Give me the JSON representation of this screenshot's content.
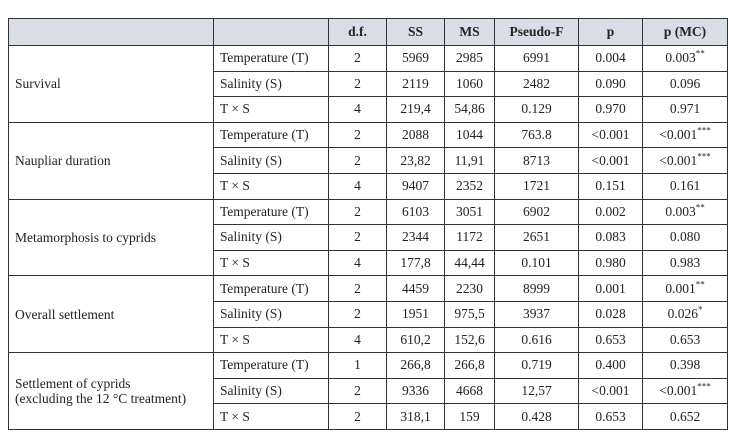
{
  "table": {
    "header": [
      "d.f.",
      "SS",
      "MS",
      "Pseudo-F",
      "p",
      "p (MC)"
    ],
    "groups": [
      {
        "label": [
          "Survival"
        ],
        "rows": [
          [
            "Temperature (T)",
            "2",
            "5969",
            "2985",
            "6991",
            "0.004",
            "0.003**"
          ],
          [
            "Salinity (S)",
            "2",
            "2119",
            "1060",
            "2482",
            "0.090",
            "0.096"
          ],
          [
            "T × S",
            "4",
            "219,4",
            "54,86",
            "0.129",
            "0.970",
            "0.971"
          ]
        ]
      },
      {
        "label": [
          "Naupliar duration"
        ],
        "rows": [
          [
            "Temperature (T)",
            "2",
            "2088",
            "1044",
            "763.8",
            "<0.001",
            "<0.001***"
          ],
          [
            "Salinity (S)",
            "2",
            "23,82",
            "11,91",
            "8713",
            "<0.001",
            "<0.001***"
          ],
          [
            "T × S",
            "4",
            "9407",
            "2352",
            "1721",
            "0.151",
            "0.161"
          ]
        ]
      },
      {
        "label": [
          "Metamorphosis to cyprids"
        ],
        "rows": [
          [
            "Temperature (T)",
            "2",
            "6103",
            "3051",
            "6902",
            "0.002",
            "0.003**"
          ],
          [
            "Salinity (S)",
            "2",
            "2344",
            "1172",
            "2651",
            "0.083",
            "0.080"
          ],
          [
            "T × S",
            "4",
            "177,8",
            "44,44",
            "0.101",
            "0.980",
            "0.983"
          ]
        ]
      },
      {
        "label": [
          "Overall settlement"
        ],
        "rows": [
          [
            "Temperature (T)",
            "2",
            "4459",
            "2230",
            "8999",
            "0.001",
            "0.001**"
          ],
          [
            "Salinity (S)",
            "2",
            "1951",
            "975,5",
            "3937",
            "0.028",
            "0.026*"
          ],
          [
            "T × S",
            "4",
            "610,2",
            "152,6",
            "0.616",
            "0.653",
            "0.653"
          ]
        ]
      },
      {
        "label": [
          "Settlement of cyprids",
          "(excluding the 12 °C treatment)"
        ],
        "rows": [
          [
            "Temperature (T)",
            "1",
            "266,8",
            "266,8",
            "0.719",
            "0.400",
            "0.398"
          ],
          [
            "Salinity (S)",
            "2",
            "9336",
            "4668",
            "12,57",
            "<0.001",
            "<0.001***"
          ],
          [
            "T × S",
            "2",
            "318,1",
            "159",
            "0.428",
            "0.653",
            "0.652"
          ]
        ]
      }
    ]
  }
}
